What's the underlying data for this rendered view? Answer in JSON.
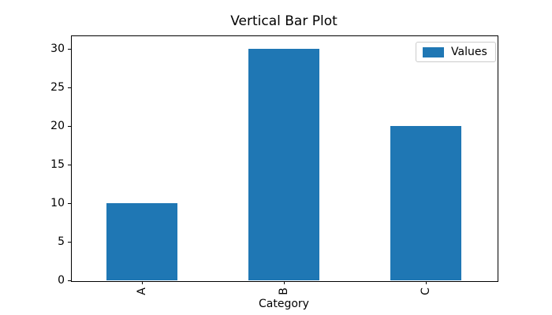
{
  "chart_data": {
    "type": "bar",
    "title": "Vertical Bar Plot",
    "categories": [
      "A",
      "B",
      "C"
    ],
    "series": [
      {
        "name": "Values",
        "values": [
          10,
          30,
          20
        ]
      }
    ],
    "xlabel": "Category",
    "ylabel": "",
    "ylim": [
      0,
      31.75
    ],
    "yticks": [
      0,
      5,
      10,
      15,
      20,
      25,
      30
    ],
    "bar_color": "#1f77b4",
    "bar_width_fraction": 0.5,
    "grid": false,
    "legend": {
      "position": "upper right",
      "entries": [
        "Values"
      ]
    }
  }
}
